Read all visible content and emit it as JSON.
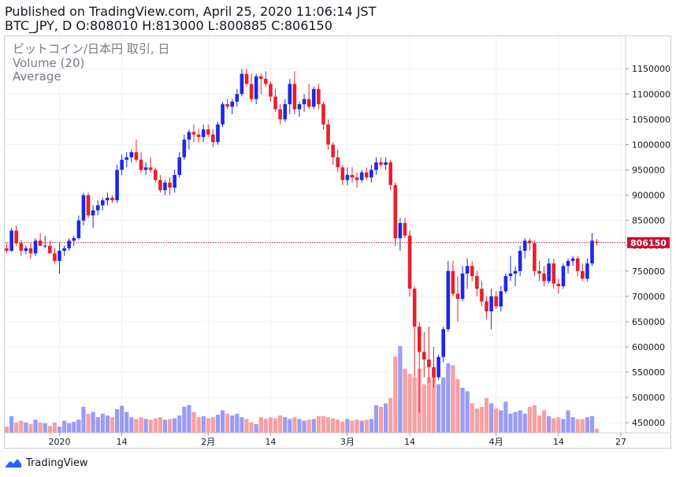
{
  "header": {
    "published": "Published on TradingView.com, April 25, 2020 11:06:14 JST",
    "ohlc": "BTC_JPY, D O:808010 H:813000 L:800885 C:806150"
  },
  "overlay": {
    "symbol": "ビットコイン/日本円 取引, 日",
    "volume": "Volume (20)",
    "average": "Average"
  },
  "footer": {
    "brand": "TradingView"
  },
  "colors": {
    "up": "#1e27e6",
    "down": "#e6202c",
    "vol_up": "#9a9cf6",
    "vol_down": "#f7a0a3",
    "price_line": "#c8102e"
  },
  "chart_data": {
    "type": "candlestick",
    "symbol": "BTC_JPY",
    "interval": "D",
    "y_ticks": [
      450000,
      500000,
      550000,
      600000,
      650000,
      700000,
      750000,
      800000,
      850000,
      900000,
      950000,
      1000000,
      1050000,
      1100000,
      1150000
    ],
    "y_tick_labels": [
      "450000",
      "500000",
      "550000",
      "600000",
      "650000",
      "700000",
      "750000",
      "800000",
      "850000",
      "900000",
      "950000",
      "1000000",
      "1050000",
      "1100000",
      "1150000"
    ],
    "ylim": [
      430000,
      1180000
    ],
    "x_labels": [
      {
        "index": 11,
        "label": "2020"
      },
      {
        "index": 24,
        "label": "14"
      },
      {
        "index": 42,
        "label": "2月"
      },
      {
        "index": 55,
        "label": "14"
      },
      {
        "index": 71,
        "label": "3月"
      },
      {
        "index": 84,
        "label": "14"
      },
      {
        "index": 102,
        "label": "4月"
      },
      {
        "index": 115,
        "label": "14"
      },
      {
        "index": 128,
        "label": "27"
      }
    ],
    "last_price": 806150,
    "last_price_label": "806150",
    "volume_ylim": [
      0,
      1
    ],
    "grid": true,
    "ohlc": [
      [
        795000,
        805000,
        785000,
        790000
      ],
      [
        790000,
        835000,
        788000,
        830000
      ],
      [
        830000,
        840000,
        800000,
        805000
      ],
      [
        805000,
        812000,
        780000,
        790000
      ],
      [
        790000,
        800000,
        783000,
        795000
      ],
      [
        795000,
        805000,
        775000,
        785000
      ],
      [
        785000,
        815000,
        780000,
        810000
      ],
      [
        810000,
        825000,
        800000,
        800000
      ],
      [
        800000,
        820000,
        795000,
        800000
      ],
      [
        800000,
        810000,
        785000,
        785000
      ],
      [
        785000,
        795000,
        765000,
        770000
      ],
      [
        770000,
        805000,
        745000,
        790000
      ],
      [
        790000,
        800000,
        780000,
        795000
      ],
      [
        795000,
        815000,
        790000,
        810000
      ],
      [
        810000,
        820000,
        800000,
        815000
      ],
      [
        815000,
        860000,
        812000,
        850000
      ],
      [
        850000,
        905000,
        840000,
        900000
      ],
      [
        900000,
        905000,
        855000,
        860000
      ],
      [
        860000,
        880000,
        835000,
        870000
      ],
      [
        870000,
        890000,
        860000,
        880000
      ],
      [
        880000,
        895000,
        870000,
        890000
      ],
      [
        890000,
        905000,
        880000,
        895000
      ],
      [
        895000,
        900000,
        885000,
        890000
      ],
      [
        890000,
        960000,
        885000,
        950000
      ],
      [
        950000,
        980000,
        940000,
        970000
      ],
      [
        970000,
        985000,
        955000,
        975000
      ],
      [
        975000,
        990000,
        965000,
        985000
      ],
      [
        985000,
        1010000,
        965000,
        970000
      ],
      [
        970000,
        985000,
        945000,
        950000
      ],
      [
        950000,
        965000,
        940000,
        955000
      ],
      [
        955000,
        975000,
        945000,
        950000
      ],
      [
        950000,
        955000,
        925000,
        930000
      ],
      [
        930000,
        940000,
        905000,
        910000
      ],
      [
        910000,
        930000,
        900000,
        925000
      ],
      [
        925000,
        935000,
        900000,
        915000
      ],
      [
        915000,
        950000,
        905000,
        940000
      ],
      [
        940000,
        985000,
        935000,
        975000
      ],
      [
        975000,
        1020000,
        970000,
        1010000
      ],
      [
        1010000,
        1030000,
        990000,
        1025000
      ],
      [
        1025000,
        1040000,
        1005000,
        1020000
      ],
      [
        1020000,
        1030000,
        1005000,
        1015000
      ],
      [
        1015000,
        1040000,
        1005000,
        1030000
      ],
      [
        1030000,
        1040000,
        1015000,
        1020000
      ],
      [
        1020000,
        1030000,
        995000,
        1005000
      ],
      [
        1005000,
        1045000,
        1000000,
        1040000
      ],
      [
        1040000,
        1085000,
        1035000,
        1080000
      ],
      [
        1080000,
        1090000,
        1070000,
        1075000
      ],
      [
        1075000,
        1090000,
        1060000,
        1085000
      ],
      [
        1085000,
        1110000,
        1075000,
        1100000
      ],
      [
        1100000,
        1150000,
        1095000,
        1140000
      ],
      [
        1140000,
        1150000,
        1115000,
        1120000
      ],
      [
        1120000,
        1140000,
        1085000,
        1090000
      ],
      [
        1090000,
        1140000,
        1080000,
        1135000
      ],
      [
        1135000,
        1140000,
        1100000,
        1130000
      ],
      [
        1130000,
        1145000,
        1115000,
        1120000
      ],
      [
        1120000,
        1125000,
        1085000,
        1095000
      ],
      [
        1095000,
        1110000,
        1065000,
        1070000
      ],
      [
        1070000,
        1080000,
        1040000,
        1050000
      ],
      [
        1050000,
        1090000,
        1045000,
        1080000
      ],
      [
        1080000,
        1130000,
        1060000,
        1120000
      ],
      [
        1120000,
        1145000,
        1060000,
        1070000
      ],
      [
        1070000,
        1085000,
        1055000,
        1080000
      ],
      [
        1080000,
        1100000,
        1065000,
        1090000
      ],
      [
        1090000,
        1120000,
        1070000,
        1075000
      ],
      [
        1075000,
        1115000,
        1070000,
        1110000
      ],
      [
        1110000,
        1120000,
        1070000,
        1080000
      ],
      [
        1080000,
        1085000,
        1030000,
        1040000
      ],
      [
        1040000,
        1050000,
        990000,
        1000000
      ],
      [
        1000000,
        1005000,
        960000,
        975000
      ],
      [
        975000,
        990000,
        945000,
        955000
      ],
      [
        955000,
        960000,
        920000,
        930000
      ],
      [
        930000,
        955000,
        920000,
        940000
      ],
      [
        940000,
        955000,
        925000,
        935000
      ],
      [
        935000,
        945000,
        915000,
        930000
      ],
      [
        930000,
        950000,
        925000,
        945000
      ],
      [
        945000,
        955000,
        930000,
        935000
      ],
      [
        935000,
        960000,
        925000,
        950000
      ],
      [
        950000,
        975000,
        940000,
        965000
      ],
      [
        965000,
        975000,
        955000,
        960000
      ],
      [
        960000,
        975000,
        950000,
        965000
      ],
      [
        965000,
        970000,
        910000,
        920000
      ],
      [
        920000,
        925000,
        800000,
        815000
      ],
      [
        815000,
        855000,
        790000,
        845000
      ],
      [
        845000,
        855000,
        815000,
        820000
      ],
      [
        820000,
        830000,
        700000,
        715000
      ],
      [
        715000,
        720000,
        540000,
        640000
      ],
      [
        640000,
        650000,
        470000,
        590000
      ],
      [
        590000,
        630000,
        540000,
        575000
      ],
      [
        575000,
        640000,
        530000,
        560000
      ],
      [
        560000,
        600000,
        520000,
        540000
      ],
      [
        540000,
        585000,
        535000,
        580000
      ],
      [
        580000,
        640000,
        570000,
        635000
      ],
      [
        635000,
        770000,
        630000,
        750000
      ],
      [
        750000,
        770000,
        700000,
        705000
      ],
      [
        705000,
        740000,
        650000,
        695000
      ],
      [
        695000,
        760000,
        690000,
        745000
      ],
      [
        745000,
        775000,
        715000,
        760000
      ],
      [
        760000,
        770000,
        730000,
        740000
      ],
      [
        740000,
        750000,
        700000,
        715000
      ],
      [
        715000,
        730000,
        680000,
        690000
      ],
      [
        690000,
        700000,
        655000,
        670000
      ],
      [
        670000,
        715000,
        635000,
        700000
      ],
      [
        700000,
        710000,
        675000,
        680000
      ],
      [
        680000,
        720000,
        670000,
        710000
      ],
      [
        710000,
        745000,
        705000,
        740000
      ],
      [
        740000,
        780000,
        730000,
        745000
      ],
      [
        745000,
        760000,
        720000,
        750000
      ],
      [
        750000,
        800000,
        740000,
        790000
      ],
      [
        790000,
        815000,
        775000,
        810000
      ],
      [
        810000,
        815000,
        790000,
        805000
      ],
      [
        805000,
        810000,
        740000,
        750000
      ],
      [
        750000,
        770000,
        730000,
        745000
      ],
      [
        745000,
        760000,
        720000,
        730000
      ],
      [
        730000,
        775000,
        725000,
        765000
      ],
      [
        765000,
        775000,
        715000,
        725000
      ],
      [
        725000,
        735000,
        705000,
        720000
      ],
      [
        720000,
        765000,
        715000,
        760000
      ],
      [
        760000,
        775000,
        745000,
        770000
      ],
      [
        770000,
        780000,
        760000,
        775000
      ],
      [
        775000,
        780000,
        740000,
        750000
      ],
      [
        750000,
        765000,
        730000,
        735000
      ],
      [
        735000,
        775000,
        730000,
        765000
      ],
      [
        765000,
        825000,
        760000,
        810000
      ],
      [
        808010,
        813000,
        800885,
        806150
      ]
    ],
    "volume": [
      0.18,
      0.48,
      0.3,
      0.35,
      0.3,
      0.25,
      0.38,
      0.3,
      0.28,
      0.2,
      0.3,
      0.18,
      0.35,
      0.28,
      0.32,
      0.38,
      0.75,
      0.55,
      0.6,
      0.45,
      0.55,
      0.5,
      0.45,
      0.68,
      0.78,
      0.6,
      0.45,
      0.4,
      0.45,
      0.4,
      0.38,
      0.42,
      0.45,
      0.38,
      0.4,
      0.42,
      0.5,
      0.75,
      0.8,
      0.6,
      0.45,
      0.48,
      0.42,
      0.45,
      0.52,
      0.65,
      0.55,
      0.5,
      0.55,
      0.45,
      0.4,
      0.3,
      0.25,
      0.45,
      0.4,
      0.45,
      0.42,
      0.5,
      0.45,
      0.4,
      0.45,
      0.4,
      0.35,
      0.38,
      0.4,
      0.48,
      0.48,
      0.45,
      0.42,
      0.38,
      0.32,
      0.4,
      0.35,
      0.38,
      0.35,
      0.38,
      0.4,
      0.8,
      0.75,
      0.85,
      1.0,
      2.2,
      2.5,
      1.85,
      1.7,
      1.6,
      1.85,
      1.4,
      1.6,
      1.85,
      1.4,
      1.6,
      2.0,
      1.95,
      1.55,
      1.3,
      1.2,
      0.85,
      0.7,
      0.75,
      1.0,
      0.85,
      0.7,
      0.65,
      0.9,
      0.55,
      0.6,
      0.65,
      0.55,
      0.75,
      0.8,
      0.5,
      0.65,
      0.48,
      0.42,
      0.45,
      0.4,
      0.65,
      0.45,
      0.4,
      0.4,
      0.45,
      0.48,
      0.12
    ]
  }
}
